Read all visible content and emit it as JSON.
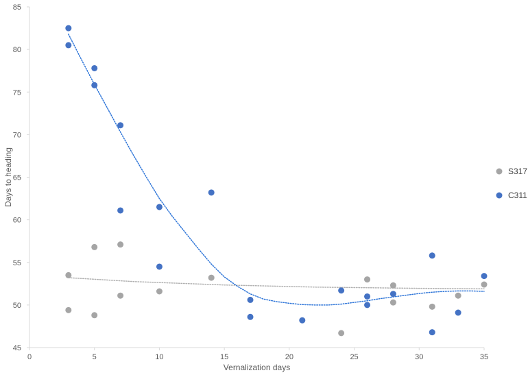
{
  "chart_data": {
    "type": "scatter",
    "title": "",
    "xlabel": "Vernalization days",
    "ylabel": "Days to heading",
    "xlim": [
      0,
      35
    ],
    "ylim": [
      45,
      85
    ],
    "xticks": [
      0,
      5,
      10,
      15,
      20,
      25,
      30,
      35
    ],
    "yticks": [
      45,
      50,
      55,
      60,
      65,
      70,
      75,
      80,
      85
    ],
    "grid": false,
    "legend_position": "right",
    "series": [
      {
        "name": "S317",
        "color": "#a5a5a5",
        "trendline": "polynomial",
        "trend_color": "#b0b0b0",
        "points": [
          [
            3,
            53.5
          ],
          [
            3,
            49.4
          ],
          [
            5,
            56.8
          ],
          [
            5,
            48.8
          ],
          [
            7,
            57.1
          ],
          [
            7,
            51.1
          ],
          [
            10,
            51.6
          ],
          [
            14,
            53.2
          ],
          [
            24,
            46.7
          ],
          [
            26,
            53.0
          ],
          [
            28,
            52.3
          ],
          [
            28,
            50.3
          ],
          [
            31,
            49.8
          ],
          [
            33,
            51.1
          ],
          [
            35,
            52.4
          ]
        ],
        "trend": [
          [
            3,
            53.2
          ],
          [
            8,
            52.75
          ],
          [
            15,
            52.35
          ],
          [
            22,
            52.1
          ],
          [
            30,
            51.95
          ],
          [
            35,
            51.9
          ]
        ]
      },
      {
        "name": "C311",
        "color": "#4472c4",
        "trendline": "polynomial",
        "trend_color": "#2e75d8",
        "points": [
          [
            3,
            82.5
          ],
          [
            3,
            80.5
          ],
          [
            5,
            77.8
          ],
          [
            5,
            75.8
          ],
          [
            7,
            71.1
          ],
          [
            7,
            61.1
          ],
          [
            10,
            61.5
          ],
          [
            10,
            54.5
          ],
          [
            14,
            63.2
          ],
          [
            17,
            50.6
          ],
          [
            17,
            48.6
          ],
          [
            21,
            48.2
          ],
          [
            24,
            51.7
          ],
          [
            26,
            51.0
          ],
          [
            26,
            50.0
          ],
          [
            28,
            51.3
          ],
          [
            31,
            55.8
          ],
          [
            31,
            46.8
          ],
          [
            33,
            49.1
          ],
          [
            35,
            53.4
          ]
        ],
        "trend": [
          [
            3,
            81.8
          ],
          [
            4,
            78.8
          ],
          [
            5,
            75.9
          ],
          [
            6,
            73.1
          ],
          [
            7,
            70.3
          ],
          [
            8,
            67.6
          ],
          [
            9,
            65.0
          ],
          [
            10,
            62.5
          ],
          [
            11,
            60.4
          ],
          [
            12,
            58.5
          ],
          [
            13,
            56.6
          ],
          [
            14,
            54.8
          ],
          [
            15,
            53.3
          ],
          [
            16,
            52.2
          ],
          [
            17,
            51.3
          ],
          [
            18,
            50.7
          ],
          [
            19,
            50.4
          ],
          [
            20,
            50.2
          ],
          [
            21,
            50.05
          ],
          [
            22,
            50.0
          ],
          [
            23,
            50.0
          ],
          [
            24,
            50.1
          ],
          [
            25,
            50.3
          ],
          [
            26,
            50.5
          ],
          [
            27,
            50.75
          ],
          [
            28,
            50.95
          ],
          [
            29,
            51.15
          ],
          [
            30,
            51.35
          ],
          [
            31,
            51.5
          ],
          [
            32,
            51.6
          ],
          [
            33,
            51.65
          ],
          [
            34,
            51.65
          ],
          [
            35,
            51.6
          ]
        ]
      }
    ]
  }
}
